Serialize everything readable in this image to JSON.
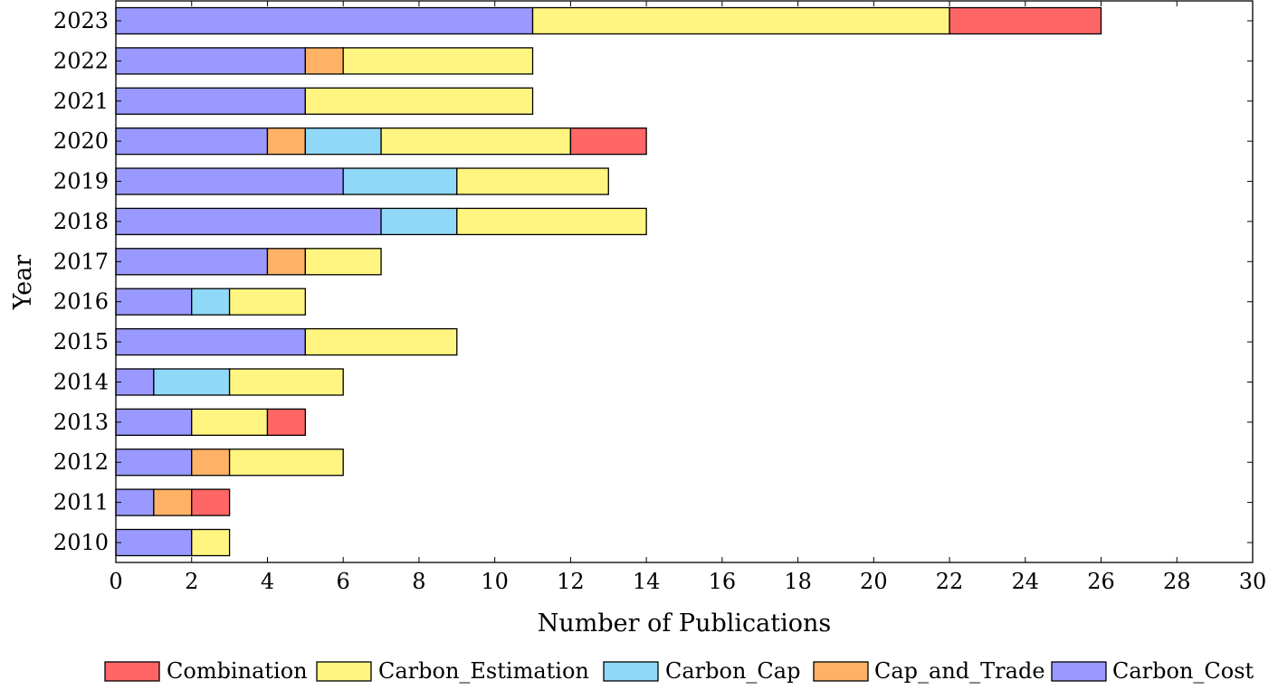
{
  "chart_data": {
    "type": "bar",
    "orientation": "horizontal",
    "stacked": true,
    "title": "",
    "xlabel": "Number of Publications",
    "ylabel": "Year",
    "xlim": [
      0,
      30
    ],
    "xticks": [
      0,
      2,
      4,
      6,
      8,
      10,
      12,
      14,
      16,
      18,
      20,
      22,
      24,
      26,
      28,
      30
    ],
    "grid": false,
    "legend_position": "bottom",
    "categories": [
      "2010",
      "2011",
      "2012",
      "2013",
      "2014",
      "2015",
      "2016",
      "2017",
      "2018",
      "2019",
      "2020",
      "2021",
      "2022",
      "2023"
    ],
    "series": [
      {
        "name": "Carbon_Cost",
        "color": "#9999ff",
        "values": [
          2,
          1,
          2,
          2,
          1,
          5,
          2,
          4,
          7,
          6,
          4,
          5,
          5,
          11
        ]
      },
      {
        "name": "Cap_and_Trade",
        "color": "#ffb266",
        "values": [
          0,
          1,
          1,
          0,
          0,
          0,
          0,
          1,
          0,
          0,
          1,
          0,
          1,
          0
        ]
      },
      {
        "name": "Carbon_Cap",
        "color": "#8fd8f7",
        "values": [
          0,
          0,
          0,
          0,
          2,
          0,
          1,
          0,
          2,
          3,
          2,
          0,
          0,
          0
        ]
      },
      {
        "name": "Carbon_Estimation",
        "color": "#fff580",
        "values": [
          1,
          0,
          3,
          2,
          3,
          4,
          2,
          2,
          5,
          4,
          5,
          6,
          5,
          11
        ]
      },
      {
        "name": "Combination",
        "color": "#ff6666",
        "values": [
          0,
          1,
          0,
          1,
          0,
          0,
          0,
          0,
          0,
          0,
          2,
          0,
          0,
          4
        ]
      }
    ],
    "legend": {
      "items": [
        {
          "label": "Combination",
          "color": "#ff6666"
        },
        {
          "label": "Carbon_Estimation",
          "color": "#fff580"
        },
        {
          "label": "Carbon_Cap",
          "color": "#8fd8f7"
        },
        {
          "label": "Cap_and_Trade",
          "color": "#ffb266"
        },
        {
          "label": "Carbon_Cost",
          "color": "#9999ff"
        }
      ]
    }
  }
}
